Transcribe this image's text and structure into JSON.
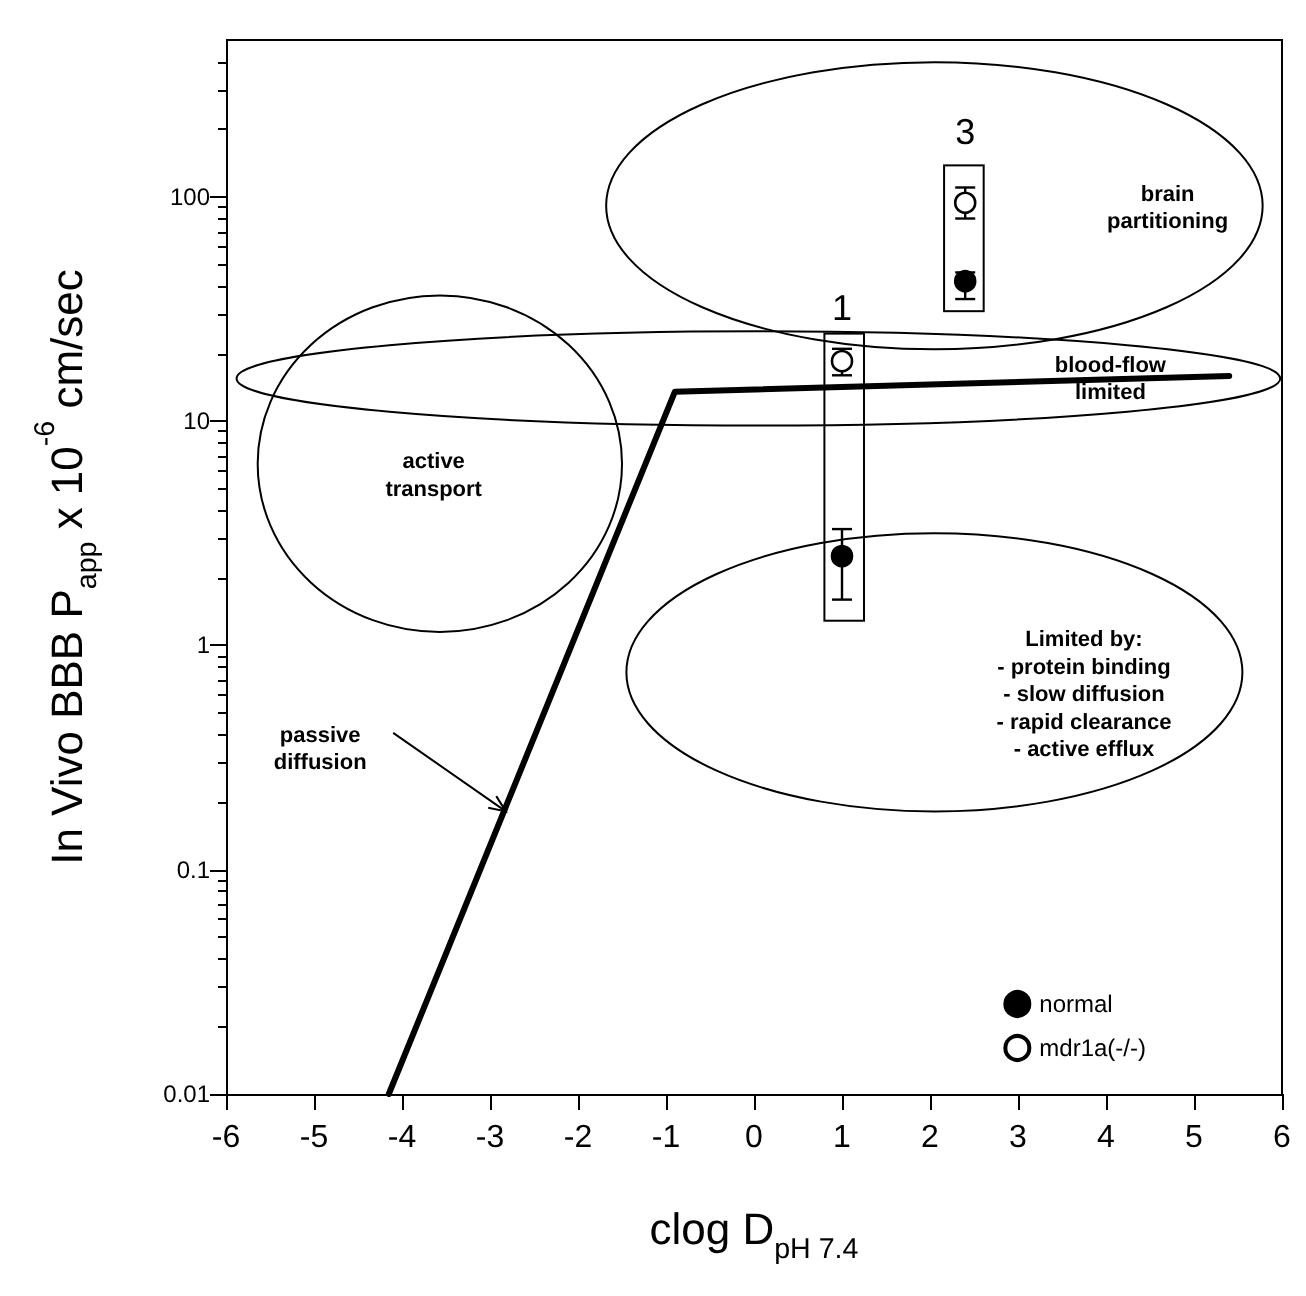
{
  "chart_data": {
    "type": "scatter",
    "xlabel": "clog D$_{pH 7.4}$",
    "ylabel": "In Vivo BBB P$_{app}$ x 10$^{-6}$ cm/sec",
    "log": "y",
    "xlim": [
      -6,
      6
    ],
    "xticks": [
      -6,
      -5,
      -4,
      -3,
      -2,
      -1,
      0,
      1,
      2,
      3,
      4,
      5,
      6
    ],
    "ylim": [
      0.01,
      500
    ],
    "yticks": [
      0.01,
      0.1,
      1,
      10,
      100
    ],
    "grid": false,
    "legend": "bottom right",
    "marker": "circle",
    "series": [
      {
        "name": "normal",
        "color": "#000000",
        "x": [
          1,
          2.4
        ],
        "values": [
          2.5,
          42
        ],
        "errors": [
          [
            1.6,
            3.3
          ],
          [
            35,
            46
          ]
        ]
      },
      {
        "name": "mdr1a(-/-)",
        "color": "#ffffff",
        "x": [
          1,
          2.4
        ],
        "values": [
          18.5,
          94
        ],
        "errors": [
          [
            16,
            21
          ],
          [
            80,
            110
          ]
        ]
      },
      {
        "type": "line",
        "color": "#000000",
        "x": [
          -4.15,
          -0.9,
          5.4
        ],
        "values": [
          0.01,
          13.5,
          15.9
        ],
        "marker": "none",
        "line_style": "solid"
      }
    ],
    "annotations": [
      "1",
      "3",
      "brain\npartitioning",
      "blood-flow\nlimited",
      "active\ntransport",
      "Limited by:\n- protein binding\n- slow diffusion\n- rapid clearance\n- active efflux",
      "passive\ndiffusion"
    ]
  }
}
